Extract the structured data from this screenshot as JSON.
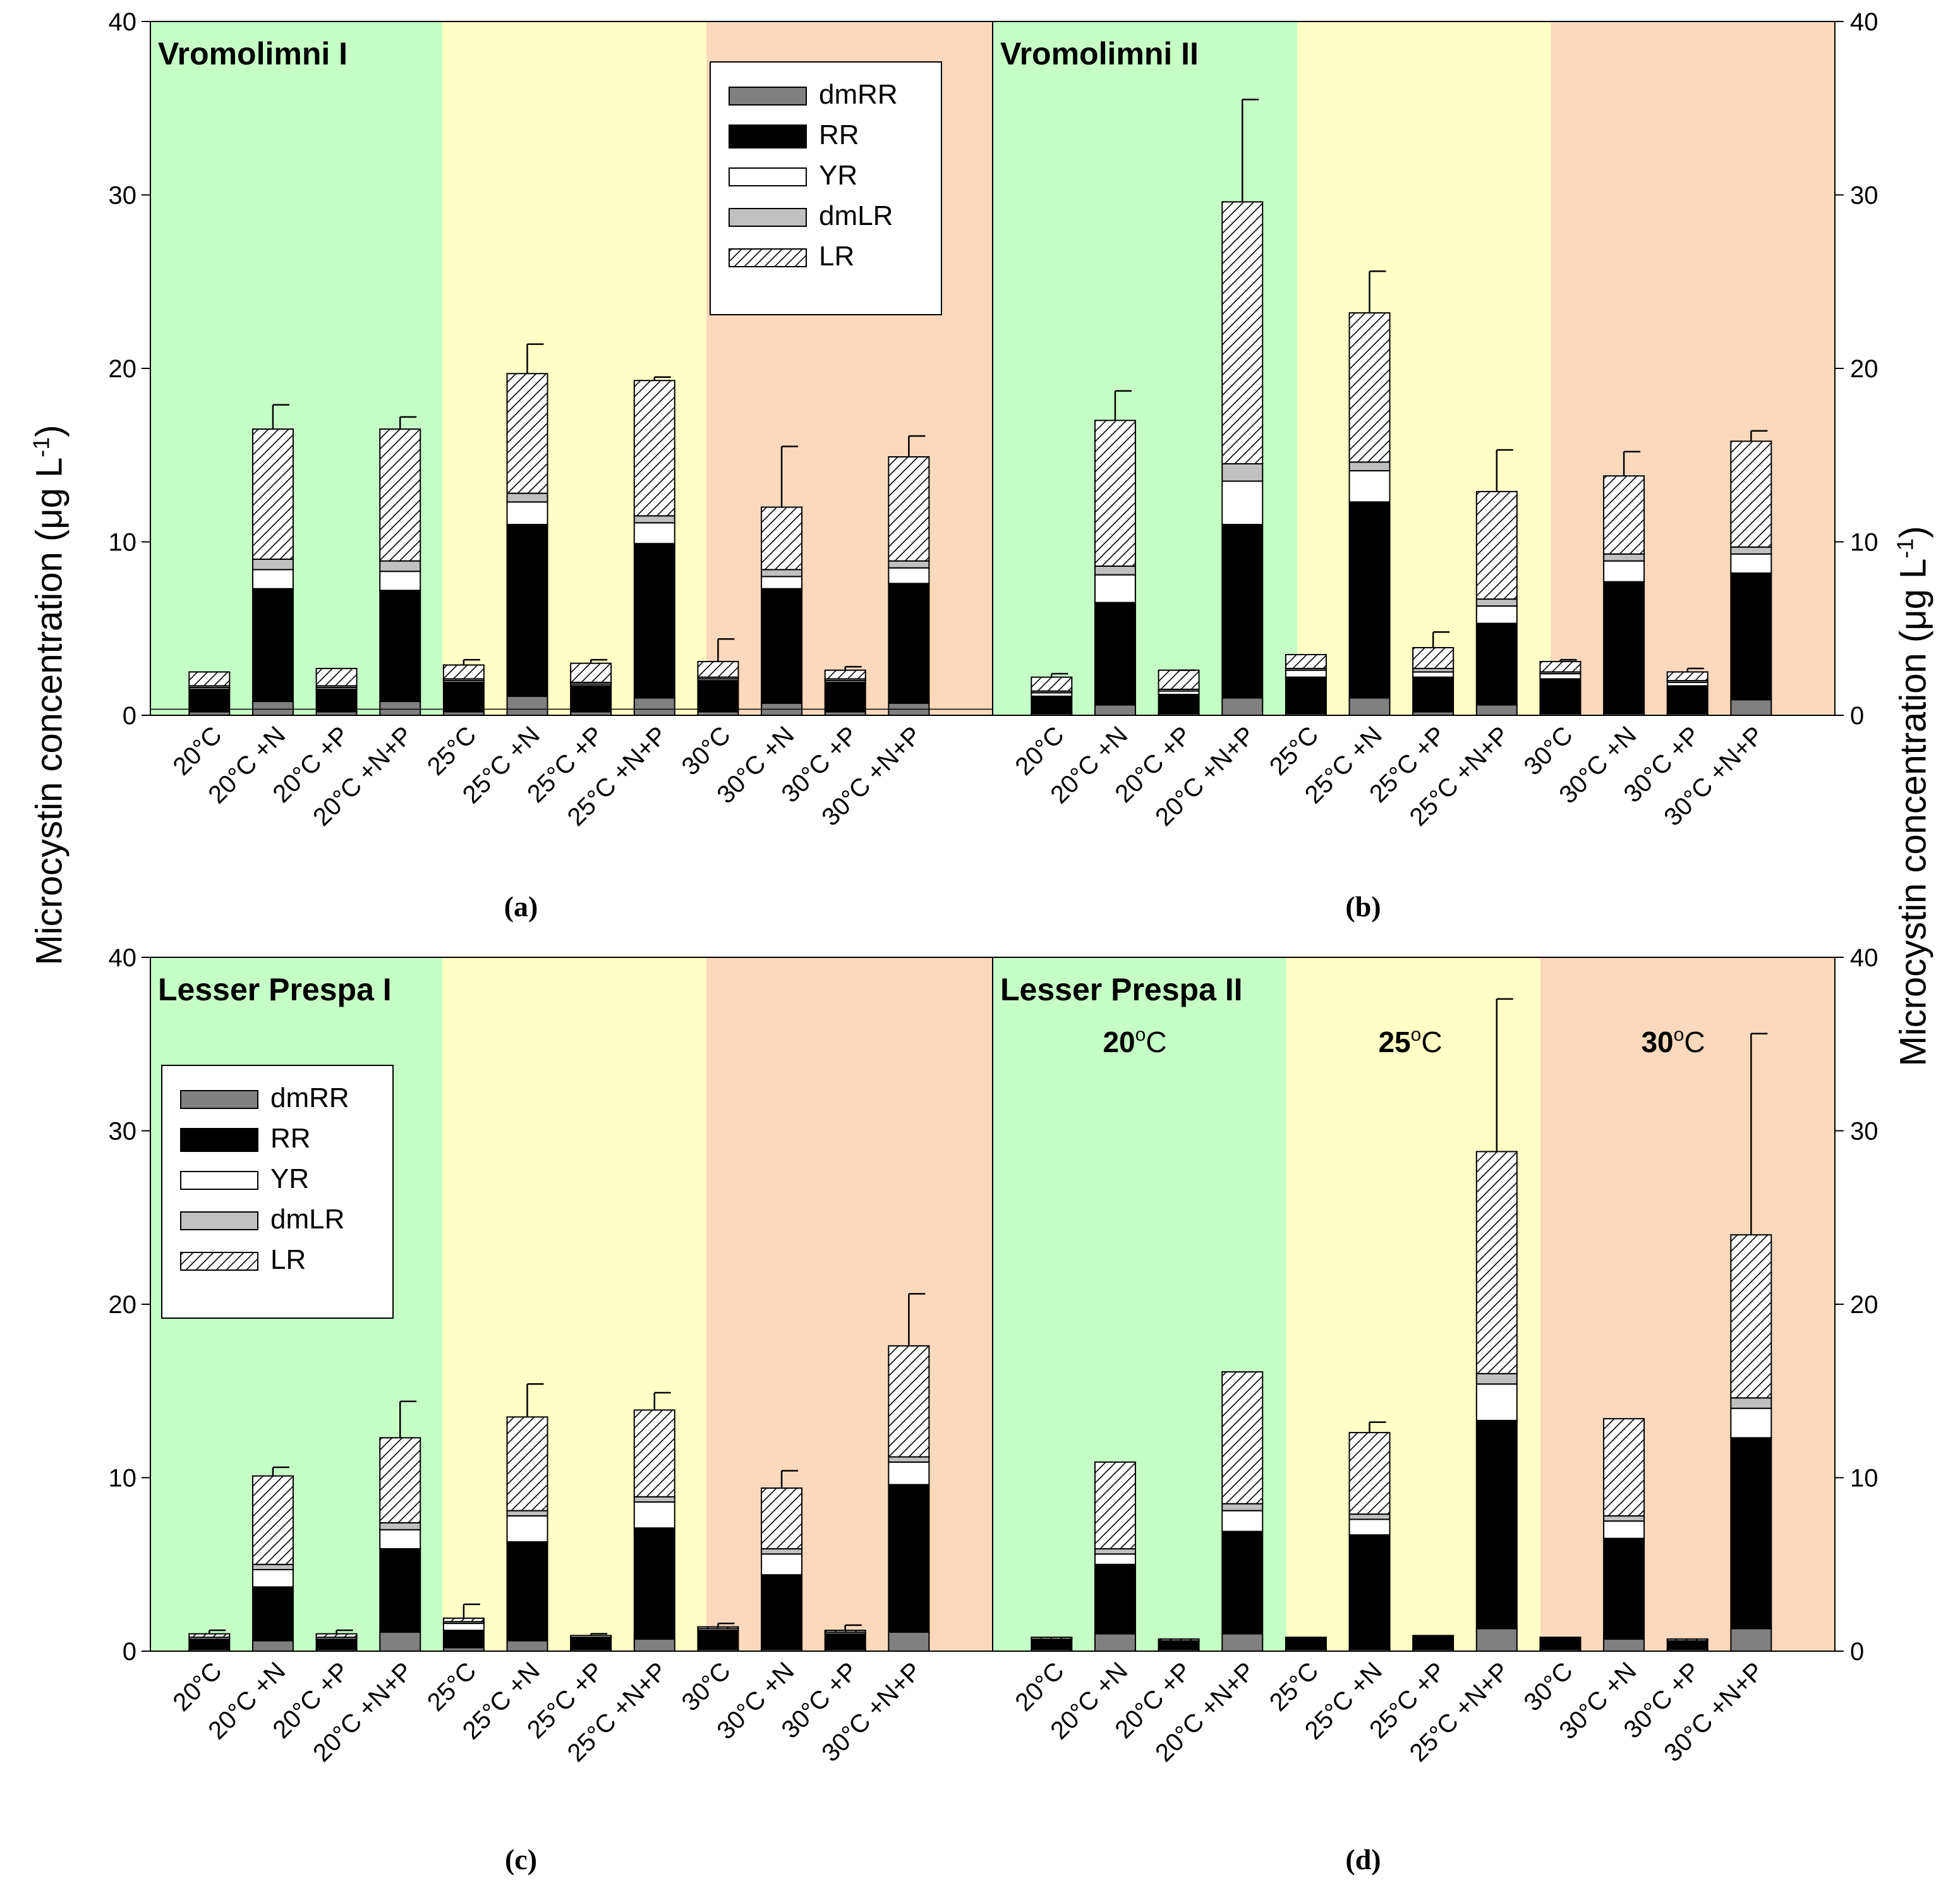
{
  "figure": {
    "ylabel_left": "Microcystin concentration (μg L",
    "ylabel_right": "Microcystin concentration (μg L",
    "ylabel_superscript": "-1",
    "ylabel_close": ")"
  },
  "colors": {
    "zone_20": "#c6ffc6",
    "zone_25": "#ffffc6",
    "zone_30": "#fcd9bc",
    "dmRR": "#808080",
    "RR": "#000000",
    "YR": "#ffffff",
    "dmLR": "#c0c0c0",
    "LR": "hatch"
  },
  "chart_data": [
    {
      "type": "bar",
      "stacked": true,
      "panel": "a",
      "title": "Vromolimni I",
      "caption": "(a)",
      "ylim": [
        0,
        40
      ],
      "yticks": [
        0,
        10,
        20,
        30,
        40
      ],
      "yaxis_side": "left",
      "temperature_zones": [
        "20°C",
        "25°C",
        "30°C"
      ],
      "legend": {
        "labels": [
          "dmRR",
          "RR",
          "YR",
          "dmLR",
          "LR"
        ],
        "position": "top-center"
      },
      "categories": [
        "20°C",
        "20°C +N",
        "20°C +P",
        "20°C +N+P",
        "25°C",
        "25°C +N",
        "25°C +P",
        "25°C +N+P",
        "30°C",
        "30°C +N",
        "30°C +P",
        "30°C +N+P"
      ],
      "series": [
        {
          "name": "dmRR",
          "values": [
            0.2,
            0.8,
            0.2,
            0.8,
            0.2,
            1.1,
            0.2,
            1.0,
            0.2,
            0.7,
            0.2,
            0.7
          ]
        },
        {
          "name": "RR",
          "values": [
            1.3,
            6.5,
            1.3,
            6.4,
            1.7,
            9.9,
            1.5,
            8.9,
            1.8,
            6.6,
            1.7,
            6.9
          ]
        },
        {
          "name": "YR",
          "values": [
            0.1,
            1.1,
            0.1,
            1.1,
            0.1,
            1.3,
            0.1,
            1.2,
            0.1,
            0.7,
            0.1,
            0.9
          ]
        },
        {
          "name": "dmLR",
          "values": [
            0.1,
            0.6,
            0.1,
            0.6,
            0.1,
            0.5,
            0.1,
            0.4,
            0.1,
            0.4,
            0.1,
            0.4
          ]
        },
        {
          "name": "LR",
          "values": [
            0.8,
            7.5,
            1.0,
            7.6,
            0.8,
            6.9,
            1.1,
            7.8,
            0.9,
            3.6,
            0.5,
            6.0
          ]
        }
      ],
      "totals": [
        2.5,
        16.5,
        2.7,
        16.5,
        2.9,
        19.7,
        3.0,
        19.3,
        3.1,
        12.0,
        2.6,
        14.9
      ],
      "errors": [
        0.0,
        1.4,
        0.0,
        0.7,
        0.3,
        1.7,
        0.2,
        0.2,
        1.3,
        3.5,
        0.2,
        1.2
      ]
    },
    {
      "type": "bar",
      "stacked": true,
      "panel": "b",
      "title": "Vromolimni II",
      "caption": "(b)",
      "ylim": [
        0,
        40
      ],
      "yticks": [
        0,
        10,
        20,
        30,
        40
      ],
      "yaxis_side": "right",
      "temperature_zones": [
        "20°C",
        "25°C",
        "30°C"
      ],
      "categories": [
        "20°C",
        "20°C +N",
        "20°C +P",
        "20°C +N+P",
        "25°C",
        "25°C +N",
        "25°C +P",
        "25°C +N+P",
        "30°C",
        "30°C +N",
        "30°C +P",
        "30°C +N+P"
      ],
      "series": [
        {
          "name": "dmRR",
          "values": [
            0.1,
            0.6,
            0.1,
            1.0,
            0.1,
            1.0,
            0.2,
            0.6,
            0.1,
            0.1,
            0.1,
            0.9
          ]
        },
        {
          "name": "RR",
          "values": [
            1.0,
            5.9,
            1.1,
            10.0,
            2.1,
            11.3,
            2.0,
            4.7,
            2.0,
            7.6,
            1.6,
            7.3
          ]
        },
        {
          "name": "YR",
          "values": [
            0.2,
            1.6,
            0.2,
            2.5,
            0.4,
            1.8,
            0.3,
            1.0,
            0.3,
            1.2,
            0.2,
            1.1
          ]
        },
        {
          "name": "dmLR",
          "values": [
            0.1,
            0.5,
            0.1,
            1.0,
            0.1,
            0.5,
            0.2,
            0.4,
            0.1,
            0.4,
            0.1,
            0.4
          ]
        },
        {
          "name": "LR",
          "values": [
            0.8,
            8.4,
            1.1,
            15.1,
            0.8,
            8.6,
            1.2,
            6.2,
            0.6,
            4.5,
            0.5,
            6.1
          ]
        }
      ],
      "totals": [
        2.2,
        17.0,
        2.5,
        29.6,
        3.5,
        23.2,
        3.9,
        12.9,
        3.1,
        13.8,
        2.5,
        15.8
      ],
      "errors": [
        0.2,
        1.7,
        0.1,
        5.9,
        0.0,
        2.4,
        0.9,
        2.4,
        0.1,
        1.4,
        0.2,
        0.6
      ]
    },
    {
      "type": "bar",
      "stacked": true,
      "panel": "c",
      "title": "Lesser Prespa I",
      "caption": "(c)",
      "ylim": [
        0,
        40
      ],
      "yticks": [
        0,
        10,
        20,
        30,
        40
      ],
      "yaxis_side": "left",
      "temperature_zones": [
        "20°C",
        "25°C",
        "30°C"
      ],
      "legend": {
        "labels": [
          "dmRR",
          "RR",
          "YR",
          "dmLR",
          "LR"
        ],
        "position": "middle-left"
      },
      "categories": [
        "20°C",
        "20°C +N",
        "20°C +P",
        "20°C +N+P",
        "25°C",
        "25°C +N",
        "25°C +P",
        "25°C +N+P",
        "30°C",
        "30°C +N",
        "30°C +P",
        "30°C +N+P"
      ],
      "series": [
        {
          "name": "dmRR",
          "values": [
            0.1,
            0.6,
            0.1,
            1.1,
            0.2,
            0.6,
            0.1,
            0.7,
            0.1,
            0.1,
            0.1,
            1.1
          ]
        },
        {
          "name": "RR",
          "values": [
            0.6,
            3.1,
            0.6,
            4.8,
            1.0,
            5.7,
            0.7,
            6.4,
            1.1,
            4.3,
            0.9,
            8.5
          ]
        },
        {
          "name": "YR",
          "values": [
            0.1,
            1.0,
            0.1,
            1.1,
            0.4,
            1.5,
            0.1,
            1.5,
            0.1,
            1.2,
            0.1,
            1.3
          ]
        },
        {
          "name": "dmLR",
          "values": [
            0.0,
            0.3,
            0.0,
            0.4,
            0.1,
            0.3,
            0.0,
            0.3,
            0.0,
            0.3,
            0.0,
            0.3
          ]
        },
        {
          "name": "LR",
          "values": [
            0.2,
            5.1,
            0.2,
            4.9,
            0.2,
            5.4,
            0.0,
            5.0,
            0.1,
            3.5,
            0.1,
            6.4
          ]
        }
      ],
      "totals": [
        1.0,
        10.1,
        1.0,
        12.3,
        1.9,
        13.5,
        0.9,
        13.9,
        1.4,
        9.4,
        1.2,
        17.6
      ],
      "errors": [
        0.2,
        0.5,
        0.2,
        2.1,
        0.8,
        1.9,
        0.1,
        1.0,
        0.2,
        1.0,
        0.3,
        3.0
      ]
    },
    {
      "type": "bar",
      "stacked": true,
      "panel": "d",
      "title": "Lesser Prespa II",
      "caption": "(d)",
      "ylim": [
        0,
        40
      ],
      "yticks": [
        0,
        10,
        20,
        30,
        40
      ],
      "yaxis_side": "right",
      "temperature_zones": [
        "20°C",
        "25°C",
        "30°C"
      ],
      "zone_labels": [
        {
          "num": "20",
          "sup": "o",
          "unit": "C"
        },
        {
          "num": "25",
          "sup": "o",
          "unit": "C"
        },
        {
          "num": "30",
          "sup": "o",
          "unit": "C"
        }
      ],
      "categories": [
        "20°C",
        "20°C +N",
        "20°C +P",
        "20°C +N+P",
        "25°C",
        "25°C +N",
        "25°C +P",
        "25°C +N+P",
        "30°C",
        "30°C +N",
        "30°C +P",
        "30°C +N+P"
      ],
      "series": [
        {
          "name": "dmRR",
          "values": [
            0.1,
            1.0,
            0.1,
            1.0,
            0.1,
            0.1,
            0.1,
            1.3,
            0.1,
            0.7,
            0.1,
            1.3
          ]
        },
        {
          "name": "RR",
          "values": [
            0.6,
            4.0,
            0.5,
            5.9,
            0.7,
            6.6,
            0.8,
            12.0,
            0.7,
            5.8,
            0.5,
            11.0
          ]
        },
        {
          "name": "YR",
          "values": [
            0.0,
            0.6,
            0.0,
            1.2,
            0.0,
            0.9,
            0.0,
            2.1,
            0.0,
            1.0,
            0.0,
            1.7
          ]
        },
        {
          "name": "dmLR",
          "values": [
            0.0,
            0.3,
            0.0,
            0.4,
            0.0,
            0.3,
            0.0,
            0.6,
            0.0,
            0.3,
            0.0,
            0.6
          ]
        },
        {
          "name": "LR",
          "values": [
            0.1,
            5.0,
            0.1,
            7.6,
            0.0,
            4.7,
            0.0,
            12.8,
            0.0,
            5.6,
            0.1,
            9.4
          ]
        }
      ],
      "totals": [
        0.8,
        10.9,
        0.7,
        16.1,
        0.8,
        12.6,
        0.9,
        28.8,
        0.8,
        13.4,
        0.7,
        24.0
      ],
      "errors": [
        0.0,
        0.0,
        0.0,
        0.0,
        0.0,
        0.6,
        0.0,
        8.8,
        0.0,
        0.0,
        0.0,
        11.6
      ]
    }
  ]
}
